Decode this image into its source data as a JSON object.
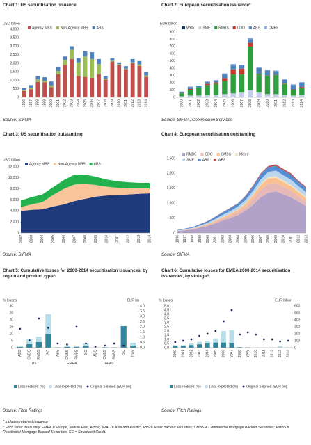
{
  "chart_data": [
    {
      "type": "bar",
      "stacked": true,
      "title": "Chart 1: US securitisation issuance",
      "source": "Source: SIFMA",
      "y_label": "USD billion",
      "categories": [
        "1996",
        "1997",
        "1998",
        "1999",
        "2000",
        "2001",
        "2002",
        "2003",
        "2004",
        "2005",
        "2006",
        "2007",
        "2008",
        "2009",
        "2010",
        "2011",
        "2012",
        "2013",
        "2014"
      ],
      "series": [
        {
          "name": "Agency MBS",
          "color": "#c0504d",
          "values": [
            370,
            480,
            900,
            880,
            600,
            1350,
            1900,
            2250,
            1250,
            1200,
            1150,
            1350,
            1050,
            2100,
            1900,
            1650,
            2000,
            1850,
            1200
          ]
        },
        {
          "name": "Non-Agency MBS",
          "color": "#9bbb59",
          "values": [
            50,
            80,
            150,
            100,
            100,
            200,
            300,
            550,
            800,
            1200,
            1100,
            600,
            50,
            50,
            50,
            30,
            50,
            80,
            80
          ]
        },
        {
          "name": "ABS",
          "color": "#4f81bd",
          "values": [
            120,
            160,
            200,
            200,
            230,
            250,
            200,
            200,
            250,
            300,
            400,
            300,
            150,
            150,
            100,
            150,
            200,
            200,
            200
          ]
        }
      ],
      "ylim": [
        0,
        4000
      ],
      "yticks": [
        0,
        500,
        {
          "value": 1000,
          "label": "1,000"
        },
        {
          "value": 1500,
          "label": "1,500"
        },
        {
          "value": 2000,
          "label": "2,000"
        },
        {
          "value": 2500,
          "label": "2,500"
        },
        {
          "value": 3000,
          "label": "3,000"
        },
        {
          "value": 3500,
          "label": "3,500"
        },
        {
          "value": 4000,
          "label": "4,000"
        }
      ],
      "grid": false
    },
    {
      "type": "bar",
      "stacked": true,
      "title": "Chart 2: European securitisation issuance*",
      "source": "Source: SIFMA, Commission Services",
      "y_label": "EUR billion",
      "categories": [
        "2000",
        "2001",
        "2002",
        "2003",
        "2004",
        "2005",
        "2006",
        "2007",
        "2008",
        "2009",
        "2010",
        "2011",
        "2012",
        "2013",
        "2014"
      ],
      "series": [
        {
          "name": "WBS",
          "color": "#1f3864",
          "values": [
            5,
            5,
            5,
            5,
            5,
            5,
            5,
            5,
            10,
            5,
            5,
            5,
            5,
            5,
            5
          ]
        },
        {
          "name": "SME",
          "color": "#c6cdea",
          "values": [
            10,
            20,
            20,
            25,
            30,
            40,
            50,
            60,
            90,
            60,
            40,
            40,
            30,
            20,
            30
          ]
        },
        {
          "name": "RMBS",
          "color": "#2e9e3e",
          "values": [
            40,
            80,
            100,
            140,
            150,
            180,
            260,
            250,
            600,
            250,
            250,
            260,
            150,
            80,
            100
          ]
        },
        {
          "name": "CDO",
          "color": "#c0392b",
          "values": [
            5,
            10,
            10,
            15,
            20,
            40,
            70,
            80,
            50,
            10,
            5,
            5,
            5,
            5,
            10
          ]
        },
        {
          "name": "ABS",
          "color": "#4f81bd",
          "values": [
            15,
            25,
            20,
            25,
            25,
            50,
            55,
            45,
            50,
            80,
            70,
            50,
            50,
            60,
            60
          ]
        },
        {
          "name": "CMBS",
          "color": "#8faadc",
          "values": [
            5,
            10,
            5,
            10,
            10,
            15,
            20,
            10,
            20,
            15,
            10,
            10,
            10,
            10,
            5
          ]
        }
      ],
      "ylim": [
        0,
        900
      ],
      "yticks": [
        0,
        100,
        200,
        300,
        400,
        500,
        600,
        700,
        800,
        900
      ],
      "grid": false
    },
    {
      "type": "area",
      "title": "Chart 3: US securitisation outstanding",
      "source": "Source: SIFMA",
      "y_label": "USD billion",
      "categories": [
        "2002",
        "2003",
        "2004",
        "2005",
        "2006",
        "2007",
        "2008",
        "2009",
        "2010",
        "2011",
        "2012",
        "2013",
        "2014"
      ],
      "series": [
        {
          "name": "Agency MBS",
          "color": "#1f3a7a",
          "values": [
            4000,
            4200,
            4300,
            4800,
            5200,
            5800,
            6200,
            6600,
            6800,
            6900,
            7000,
            7100,
            7200
          ]
        },
        {
          "name": "Non-Agency MBS",
          "color": "#f8c49a",
          "values": [
            700,
            1000,
            1300,
            2100,
            2800,
            3000,
            2700,
            2100,
            1600,
            1300,
            1100,
            1000,
            900
          ]
        },
        {
          "name": "ABS",
          "color": "#22b14c",
          "values": [
            1200,
            1300,
            1400,
            1400,
            1600,
            1800,
            1700,
            1500,
            1300,
            1200,
            1100,
            1000,
            1000
          ]
        }
      ],
      "ylim": [
        0,
        12000
      ],
      "yticks": [
        0,
        {
          "value": 2000,
          "label": "2,000"
        },
        {
          "value": 4000,
          "label": "4,000"
        },
        {
          "value": 6000,
          "label": "6,000"
        },
        {
          "value": 8000,
          "label": "8,000"
        },
        {
          "value": 10000,
          "label": "10,000"
        },
        {
          "value": 12000,
          "label": "12,000"
        }
      ],
      "grid": false
    },
    {
      "type": "area",
      "title": "Chart 4: European securitisation outstanding",
      "source": "Source: SIFMA",
      "categories": [
        "1996",
        "1997",
        "1998",
        "1999",
        "2000",
        "2001",
        "2002",
        "2003",
        "2004",
        "2005",
        "2006",
        "2007",
        "2008",
        "2009",
        "2010",
        "2011",
        "2012",
        "2013"
      ],
      "series": [
        {
          "name": "RMBS",
          "color": "#b3a2c7",
          "values": [
            60,
            90,
            120,
            180,
            240,
            320,
            420,
            500,
            600,
            750,
            950,
            1200,
            1350,
            1400,
            1300,
            1200,
            1050,
            900
          ]
        },
        {
          "name": "CDO",
          "color": "#e6b9b8",
          "values": [
            5,
            10,
            15,
            20,
            30,
            50,
            60,
            80,
            100,
            130,
            180,
            250,
            300,
            280,
            250,
            220,
            180,
            150
          ]
        },
        {
          "name": "CMBS",
          "color": "#fac090",
          "values": [
            5,
            10,
            15,
            20,
            30,
            40,
            50,
            60,
            80,
            100,
            130,
            160,
            180,
            170,
            160,
            150,
            130,
            120
          ]
        },
        {
          "name": "Mixed",
          "color": "#eee4c4",
          "values": [
            2,
            2,
            3,
            5,
            5,
            10,
            10,
            15,
            20,
            20,
            30,
            40,
            50,
            60,
            50,
            50,
            50,
            50
          ]
        },
        {
          "name": "SME",
          "color": "#b9d6ee",
          "values": [
            10,
            15,
            20,
            30,
            40,
            50,
            70,
            80,
            90,
            110,
            130,
            150,
            170,
            180,
            180,
            170,
            160,
            150
          ]
        },
        {
          "name": "ABS",
          "color": "#558ed5",
          "values": [
            15,
            20,
            25,
            40,
            50,
            70,
            80,
            100,
            100,
            120,
            150,
            170,
            160,
            160,
            160,
            160,
            140,
            140
          ]
        },
        {
          "name": "WBS",
          "color": "#c0504d",
          "values": [
            3,
            3,
            2,
            5,
            5,
            10,
            10,
            15,
            10,
            20,
            30,
            30,
            40,
            50,
            50,
            50,
            40,
            40
          ]
        }
      ],
      "ylim": [
        0,
        2500
      ],
      "yticks": [
        0,
        500,
        {
          "value": 1000,
          "label": "1,000"
        },
        {
          "value": 1500,
          "label": "1,500"
        },
        {
          "value": 2000,
          "label": "2,000"
        },
        {
          "value": 2500,
          "label": "2,500"
        }
      ],
      "grid": false
    },
    {
      "type": "combo",
      "title": "Chart 5: Cumulative losses for 2000-2014 securitisation issuances, by region and product type^",
      "source": "Source: Fitch Ratings",
      "y_label": "% losses",
      "y2_label": "EUR bn",
      "categories": [
        "ABS",
        "CMBS",
        "RMBS",
        "SC",
        "ABS",
        "CMBS",
        "RMBS",
        "SC",
        "ABS",
        "CMBS",
        "RMBS",
        "SC",
        "Total"
      ],
      "groups": [
        {
          "name": "US",
          "size": 4
        },
        {
          "name": "EMEA",
          "size": 4
        },
        {
          "name": "APAC",
          "size": 4
        }
      ],
      "series": [
        {
          "name": "Loss realised (%)",
          "type": "bar",
          "color": "#31859c",
          "values": [
            0.5,
            2.5,
            4,
            10,
            0.1,
            0.5,
            0.5,
            1,
            0,
            0.2,
            0.1,
            15.5,
            1.5
          ]
        },
        {
          "name": "Loss expected (%)",
          "type": "bar",
          "color": "#b7dee8",
          "values": [
            1,
            6,
            8,
            24,
            0.3,
            1.5,
            1,
            3,
            0.1,
            0.5,
            0.3,
            15.5,
            3.5
          ]
        },
        {
          "name": "Original balance (EUR bn)",
          "type": "scatter",
          "axis": "y2",
          "color": "#1f2d5a",
          "values": [
            1.8,
            0.7,
            2.8,
            1.9,
            0.4,
            0.3,
            2.0,
            0.4,
            0.1,
            0.2,
            0.4,
            0.2,
            null
          ]
        }
      ],
      "ylim": [
        0,
        30
      ],
      "yticks": [
        0,
        5,
        10,
        15,
        20,
        25,
        30
      ],
      "y2lim": [
        0,
        4
      ],
      "y2ticks": [
        {
          "value": 0,
          "label": "0.0"
        },
        0.5,
        {
          "value": 1,
          "label": "1.0"
        },
        1.5,
        {
          "value": 2,
          "label": "2.0"
        },
        2.5,
        {
          "value": 3,
          "label": "3.0"
        },
        3.5,
        {
          "value": 4,
          "label": "4.0"
        }
      ],
      "grid": false
    },
    {
      "type": "combo",
      "title": "Chart 6: Cumulative losses for EMEA 2000-2014 securitisation issuances, by vintage^",
      "source": "Source: Fitch Ratings",
      "y_label": "% losses",
      "y2_label": "EUR billion",
      "categories": [
        "2000",
        "2001",
        "2002",
        "2003",
        "2004",
        "2005",
        "2006",
        "2007",
        "2008",
        "2009",
        "2010",
        "2011",
        "2012",
        "2013",
        "2014"
      ],
      "series": [
        {
          "name": "Loss realised (%)",
          "type": "bar",
          "color": "#31859c",
          "values": [
            0.2,
            0.2,
            0.3,
            0.4,
            0.5,
            0.6,
            0.6,
            0.5,
            0.05,
            0.02,
            0,
            0,
            0,
            0,
            0
          ]
        },
        {
          "name": "Loss expected (%)",
          "type": "bar",
          "color": "#b7dee8",
          "values": [
            0.3,
            0.3,
            0.5,
            0.7,
            0.8,
            1.1,
            2.0,
            2.1,
            0.1,
            0.05,
            0.02,
            0,
            0.02,
            0.2,
            0.05
          ]
        },
        {
          "name": "Original balance (EUR bn)",
          "type": "scatter",
          "axis": "y2",
          "color": "#1f2d5a",
          "values": [
            80,
            100,
            120,
            170,
            200,
            240,
            380,
            540,
            190,
            220,
            190,
            120,
            120,
            90,
            100
          ]
        }
      ],
      "ylim": [
        0,
        5
      ],
      "yticks": [
        {
          "value": 0,
          "label": "0.0"
        },
        0.5,
        {
          "value": 1,
          "label": "1.0"
        },
        1.5,
        {
          "value": 2,
          "label": "2.0"
        },
        2.5,
        {
          "value": 3,
          "label": "3.0"
        },
        3.5,
        {
          "value": 4,
          "label": "4.0"
        },
        4.5,
        {
          "value": 5,
          "label": "5.0"
        }
      ],
      "y2lim": [
        0,
        600
      ],
      "y2ticks": [
        0,
        100,
        200,
        300,
        400,
        500,
        600
      ],
      "grid": false
    }
  ],
  "footnotes": [
    "* Includes retained issuance",
    "^ Fitch rated deals only. EMEA = Europe, Middle East, Africa; APAC = Asia and Pacific; ABS = Asset Backed securities; CMBS = Commercial Mortgage Backed Securities; RMBS = Residential Mortgage Backed Securities; SC = Structured Credit."
  ]
}
